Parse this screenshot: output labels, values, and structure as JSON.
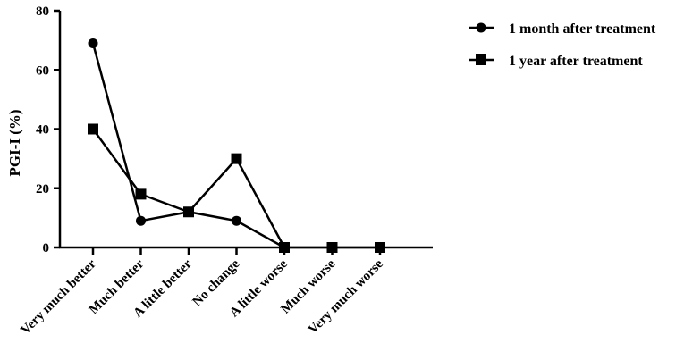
{
  "chart_data": {
    "type": "line",
    "ylabel": "PGI-I (%)",
    "xlabel": "",
    "ylim": [
      0,
      80
    ],
    "yticks": [
      0,
      20,
      40,
      60,
      80
    ],
    "categories": [
      "Very much better",
      "Much better",
      "A little better",
      "No change",
      "A little worse",
      "Much worse",
      "Very much worse"
    ],
    "series": [
      {
        "name": "1 month after treatment",
        "marker": "circle",
        "color": "#000000",
        "values": [
          69,
          9,
          12,
          9,
          0,
          null,
          null
        ]
      },
      {
        "name": "1 year after treatment",
        "marker": "square",
        "color": "#000000",
        "values": [
          40,
          18,
          12,
          30,
          0,
          0,
          0
        ]
      }
    ],
    "legend_position": "top-right",
    "grid": false
  }
}
